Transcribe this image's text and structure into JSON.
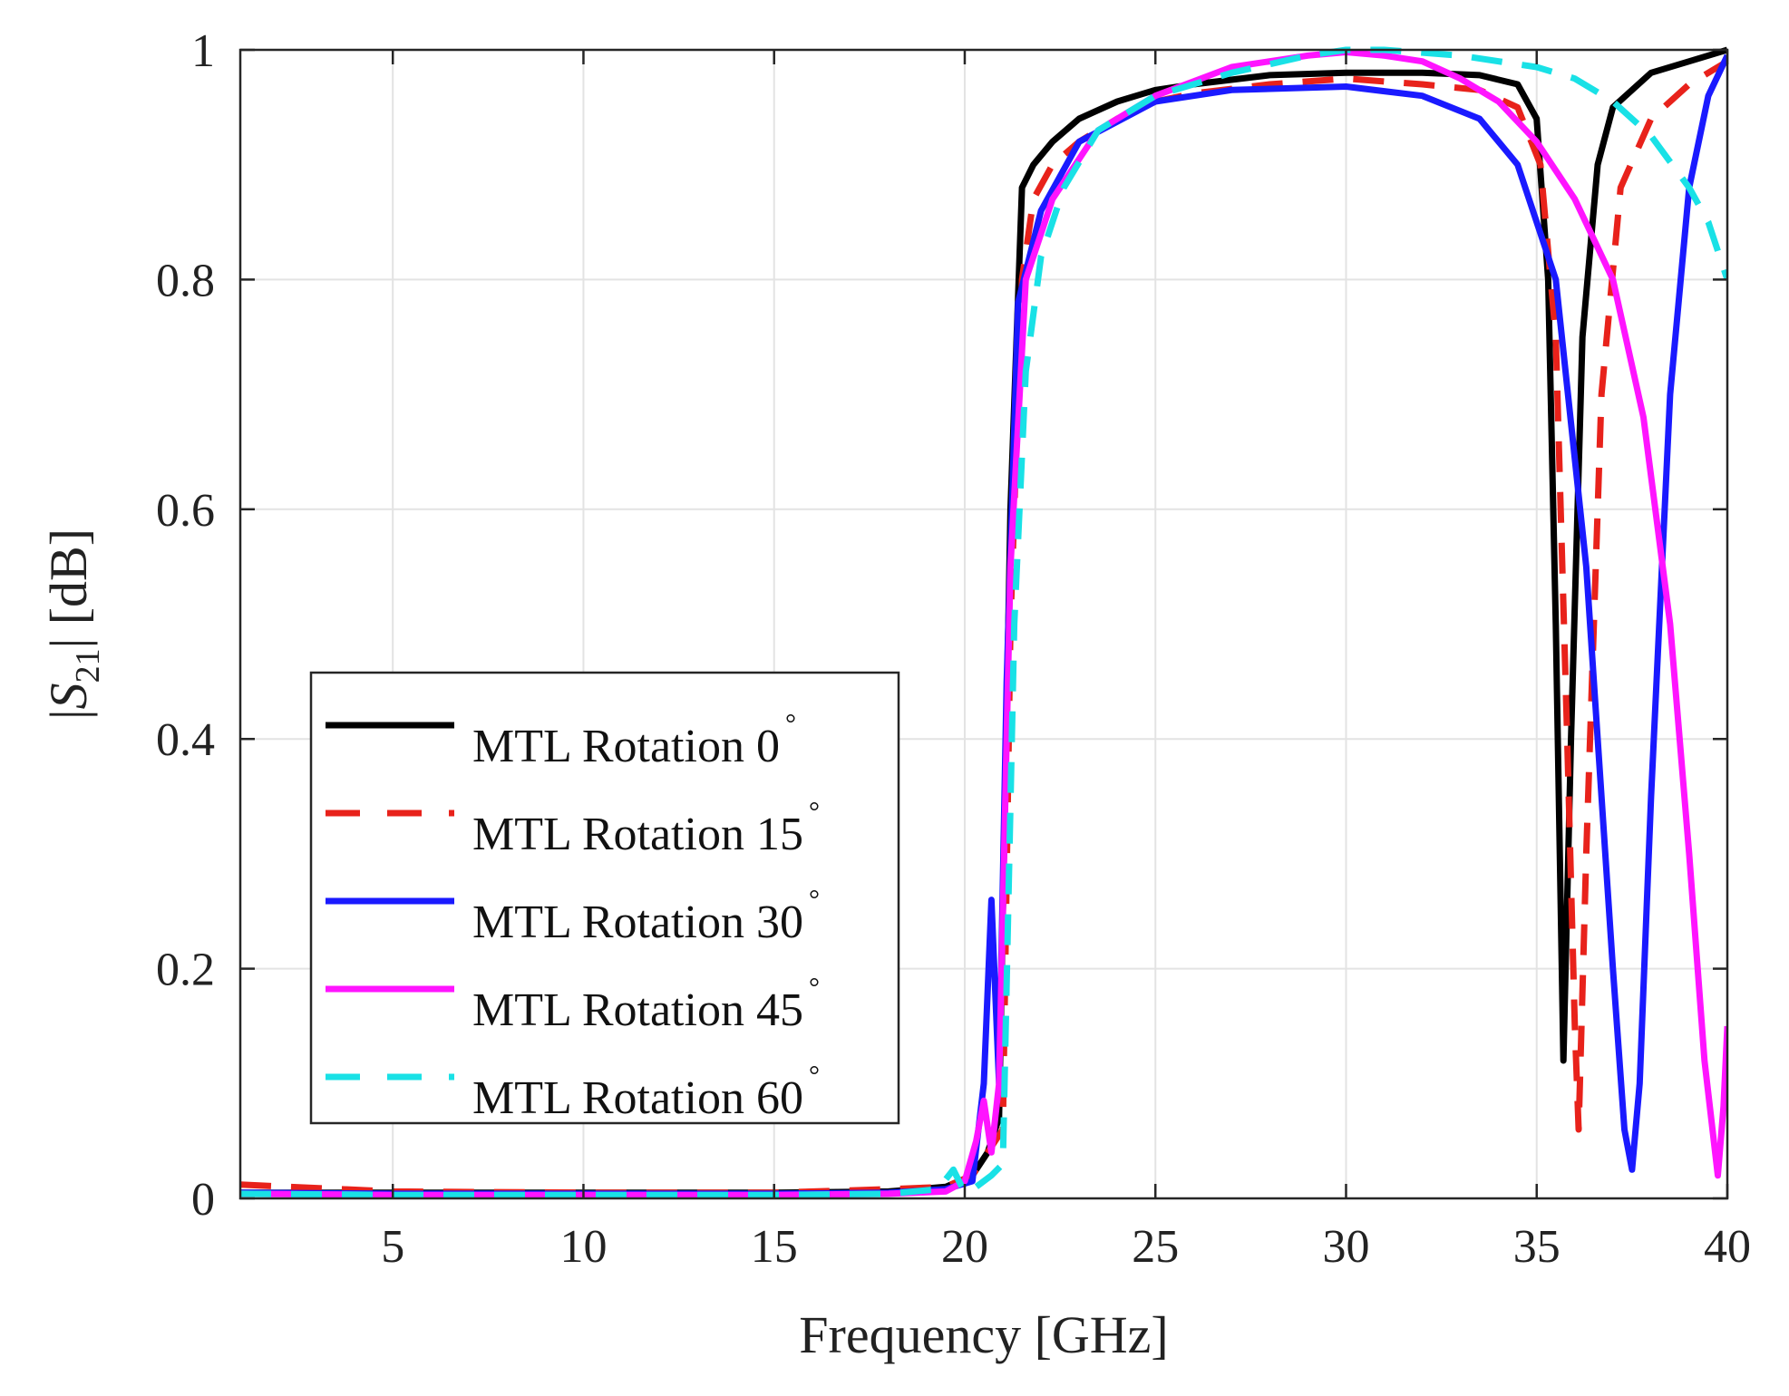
{
  "chart_data": {
    "type": "line",
    "title": "",
    "xlabel": "Frequency [GHz]",
    "ylabel_parts": {
      "pre": "|",
      "var": "S",
      "sub": "21",
      "post": "| [dB]"
    },
    "xlim": [
      1,
      40
    ],
    "ylim": [
      0,
      1
    ],
    "xticks": [
      5,
      10,
      15,
      20,
      25,
      30,
      35,
      40
    ],
    "yticks": [
      0,
      0.2,
      0.4,
      0.6,
      0.8,
      1
    ],
    "ytick_labels": [
      "0",
      "0.2",
      "0.4",
      "0.6",
      "0.8",
      "1"
    ],
    "grid": true,
    "legend_position": "bottom-left",
    "series": [
      {
        "name": "MTL Rotation 0",
        "degree_symbol": "°",
        "color": "#000000",
        "style": "solid",
        "x": [
          1,
          5,
          10,
          15,
          18,
          19.5,
          20.2,
          20.6,
          20.9,
          21.2,
          21.5,
          21.8,
          22.3,
          23,
          24,
          25,
          26,
          28,
          30,
          32,
          33.5,
          34.5,
          35,
          35.3,
          35.5,
          35.7,
          35.9,
          36.2,
          36.6,
          37,
          38,
          39,
          40
        ],
        "y": [
          0.005,
          0.005,
          0.005,
          0.005,
          0.006,
          0.01,
          0.02,
          0.04,
          0.07,
          0.6,
          0.88,
          0.9,
          0.92,
          0.94,
          0.955,
          0.965,
          0.97,
          0.978,
          0.98,
          0.98,
          0.978,
          0.97,
          0.94,
          0.8,
          0.5,
          0.12,
          0.4,
          0.75,
          0.9,
          0.95,
          0.98,
          0.99,
          1.0
        ]
      },
      {
        "name": "MTL Rotation 15",
        "degree_symbol": "°",
        "color": "#e8221b",
        "style": "dashed",
        "x": [
          1,
          5,
          10,
          15,
          18,
          19.5,
          20.2,
          20.6,
          21,
          21.2,
          21.5,
          21.8,
          22.3,
          23,
          24,
          25,
          26,
          28,
          30,
          32,
          33.5,
          34.5,
          35.1,
          35.5,
          35.8,
          36.0,
          36.1,
          36.3,
          36.7,
          37.2,
          38,
          39,
          40
        ],
        "y": [
          0.012,
          0.006,
          0.005,
          0.005,
          0.008,
          0.01,
          0.02,
          0.04,
          0.06,
          0.5,
          0.8,
          0.87,
          0.9,
          0.92,
          0.94,
          0.955,
          0.962,
          0.97,
          0.975,
          0.97,
          0.965,
          0.95,
          0.9,
          0.75,
          0.4,
          0.15,
          0.06,
          0.3,
          0.7,
          0.88,
          0.94,
          0.97,
          0.99
        ]
      },
      {
        "name": "MTL Rotation 30",
        "degree_symbol": "°",
        "color": "#1a1aff",
        "style": "solid",
        "x": [
          1,
          5,
          10,
          15,
          18,
          19.5,
          20.2,
          20.5,
          20.7,
          20.9,
          21.1,
          21.4,
          22,
          23,
          25,
          27,
          30,
          32,
          33.5,
          34.5,
          35.5,
          36.3,
          37,
          37.3,
          37.5,
          37.7,
          38,
          38.5,
          39,
          39.5,
          40
        ],
        "y": [
          0.005,
          0.004,
          0.004,
          0.004,
          0.005,
          0.008,
          0.015,
          0.1,
          0.26,
          0.1,
          0.45,
          0.78,
          0.86,
          0.92,
          0.955,
          0.965,
          0.968,
          0.96,
          0.94,
          0.9,
          0.8,
          0.55,
          0.2,
          0.06,
          0.025,
          0.1,
          0.35,
          0.7,
          0.88,
          0.96,
          0.995
        ]
      },
      {
        "name": "MTL Rotation 45",
        "degree_symbol": "°",
        "color": "#ff14ff",
        "style": "solid",
        "x": [
          1,
          5,
          10,
          15,
          18,
          19.5,
          20.0,
          20.3,
          20.5,
          20.7,
          20.9,
          21.2,
          21.6,
          22.3,
          23.5,
          25,
          27,
          29,
          30,
          31,
          32,
          33,
          34,
          35,
          36,
          37,
          37.8,
          38.5,
          39,
          39.4,
          39.75,
          39.9,
          40
        ],
        "y": [
          0.004,
          0.003,
          0.003,
          0.003,
          0.004,
          0.006,
          0.015,
          0.05,
          0.085,
          0.04,
          0.1,
          0.55,
          0.8,
          0.87,
          0.93,
          0.96,
          0.985,
          0.995,
          0.998,
          0.995,
          0.99,
          0.975,
          0.955,
          0.92,
          0.87,
          0.8,
          0.68,
          0.5,
          0.3,
          0.12,
          0.02,
          0.08,
          0.15
        ]
      },
      {
        "name": "MTL Rotation 60",
        "degree_symbol": "°",
        "color": "#19e1e6",
        "style": "dashed",
        "x": [
          1,
          5,
          10,
          15,
          18,
          19.3,
          19.7,
          20.0,
          20.3,
          20.7,
          21.0,
          21.3,
          21.6,
          22.0,
          22.6,
          23.5,
          25,
          27,
          29,
          30,
          31,
          33,
          35,
          36,
          37,
          38,
          39,
          39.5,
          40
        ],
        "y": [
          0.004,
          0.003,
          0.003,
          0.003,
          0.004,
          0.008,
          0.025,
          0.005,
          0.01,
          0.02,
          0.03,
          0.5,
          0.72,
          0.82,
          0.88,
          0.93,
          0.96,
          0.98,
          0.995,
          1.0,
          1.0,
          0.995,
          0.985,
          0.975,
          0.955,
          0.925,
          0.88,
          0.85,
          0.8
        ]
      }
    ]
  }
}
